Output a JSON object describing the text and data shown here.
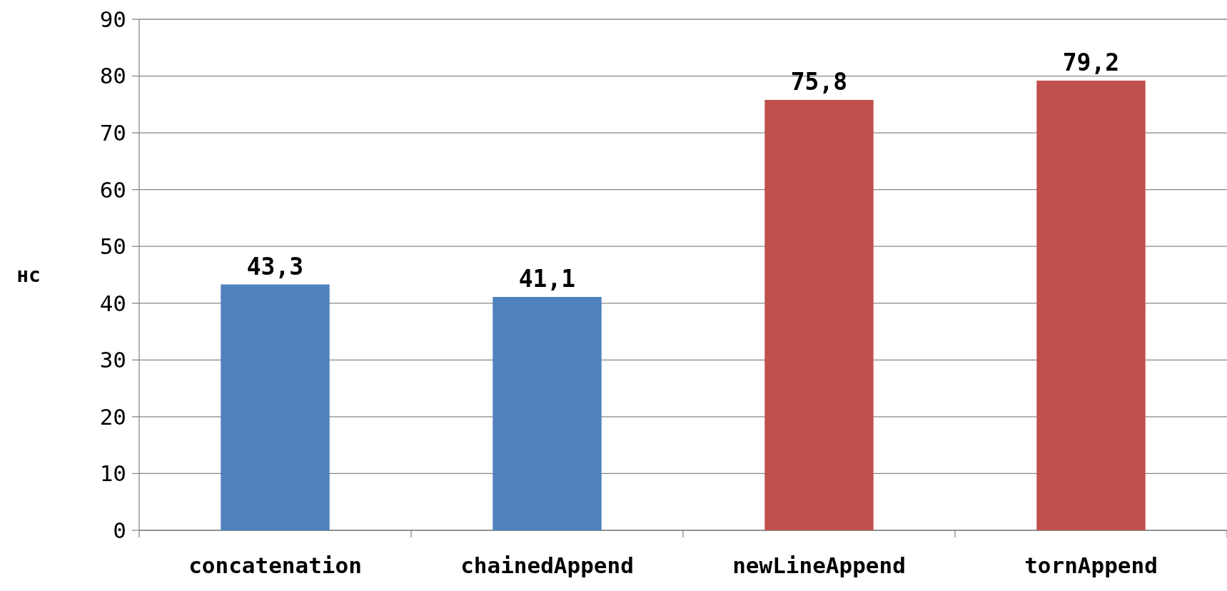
{
  "chart_data": {
    "type": "bar",
    "ylabel": "нс",
    "categories": [
      "concatenation",
      "chainedAppend",
      "newLineAppend",
      "tornAppend"
    ],
    "values": [
      43.3,
      41.1,
      75.8,
      79.2
    ],
    "colors": [
      "#4f81bd",
      "#4f81bd",
      "#c0504d",
      "#c0504d"
    ],
    "value_labels": [
      "43,3",
      "41,1",
      "75,8",
      "79,2"
    ],
    "ylim": [
      0,
      90
    ],
    "yticks": [
      0,
      10,
      20,
      30,
      40,
      50,
      60,
      70,
      80,
      90
    ],
    "grid": "y"
  }
}
